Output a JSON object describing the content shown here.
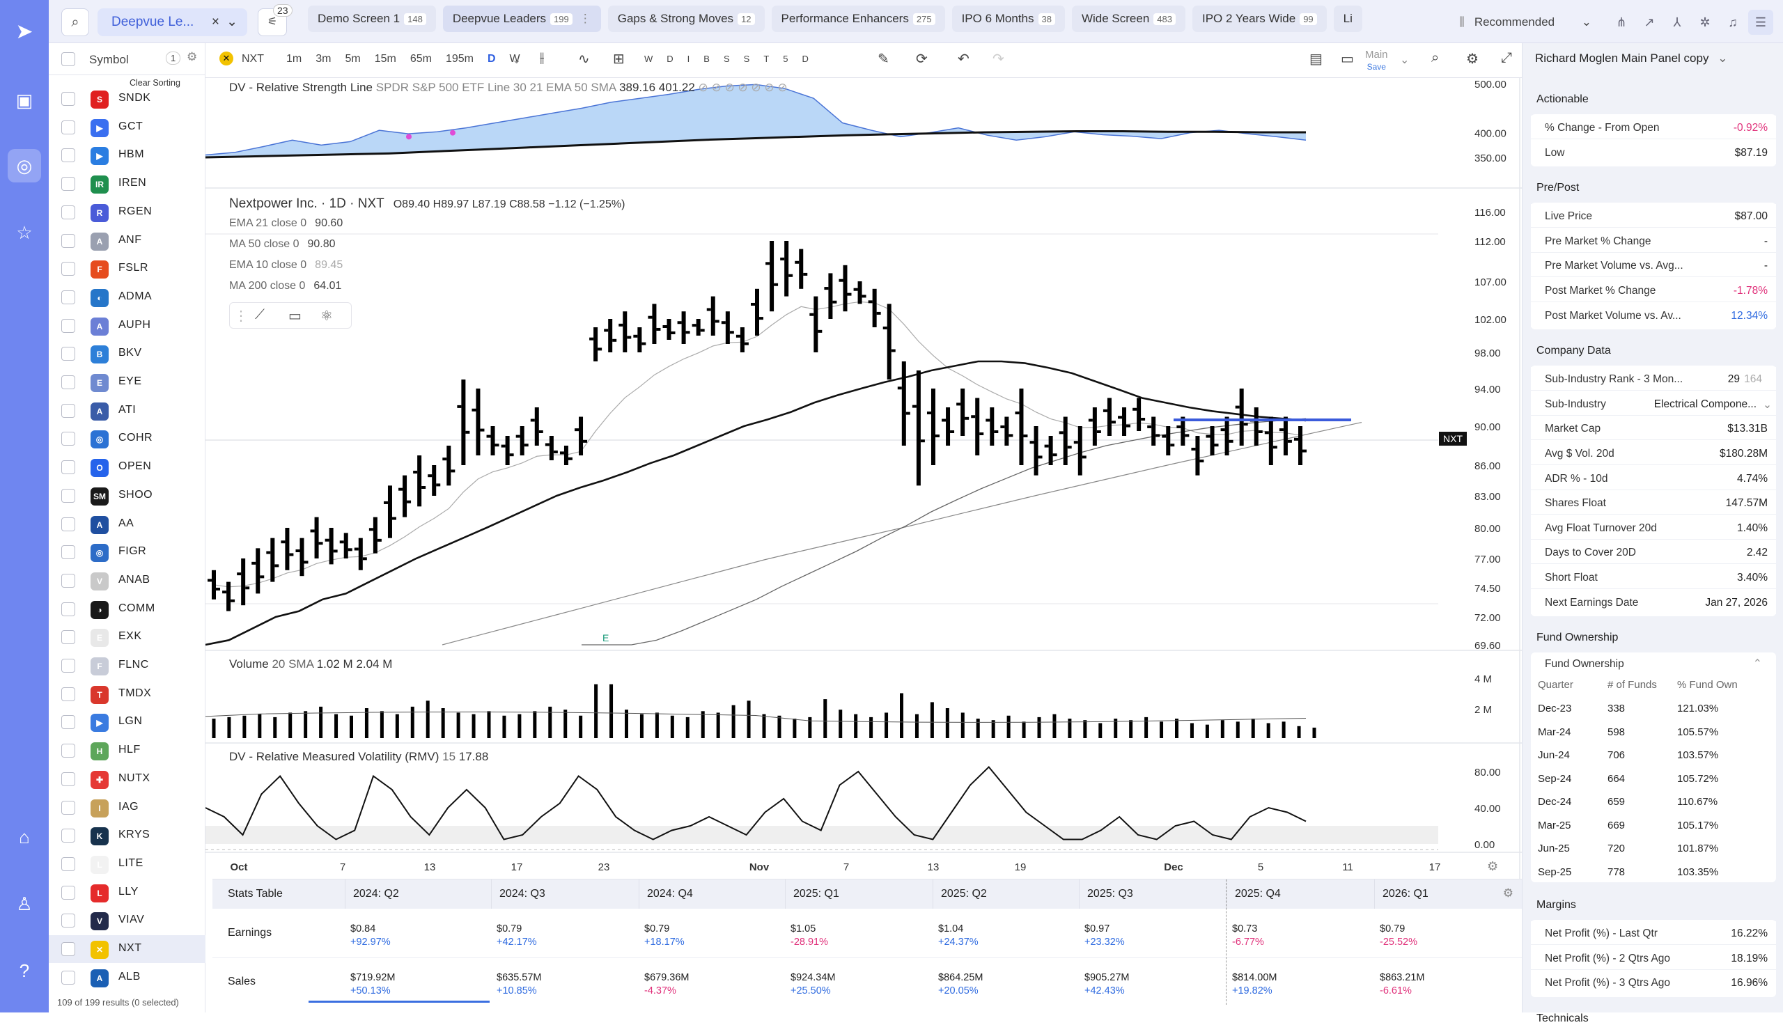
{
  "topbar": {
    "screen_select": "Deepvue Le...",
    "filter_badge": "23",
    "tabs": [
      {
        "label": "Demo Screen 1",
        "count": "148"
      },
      {
        "label": "Deepvue Leaders",
        "count": "199"
      },
      {
        "label": "Gaps & Strong Moves",
        "count": "12"
      },
      {
        "label": "Performance Enhancers",
        "count": "275"
      },
      {
        "label": "IPO 6 Months",
        "count": "38"
      },
      {
        "label": "Wide Screen",
        "count": "483"
      },
      {
        "label": "IPO 2 Years Wide",
        "count": "99"
      },
      {
        "label": "Li",
        "count": ""
      }
    ],
    "recommended": "Recommended"
  },
  "watchlist": {
    "header": "Symbol",
    "header_count": "1",
    "clear_sorting": "Clear Sorting",
    "rows": [
      {
        "ticker": "SNDK",
        "color": "#e02020",
        "mark": "S"
      },
      {
        "ticker": "GCT",
        "color": "#3a6ff0",
        "mark": "▶"
      },
      {
        "ticker": "HBM",
        "color": "#2a7de1",
        "mark": "▶"
      },
      {
        "ticker": "IREN",
        "color": "#1f8f4e",
        "mark": "IR"
      },
      {
        "ticker": "RGEN",
        "color": "#4a5bd8",
        "mark": "R"
      },
      {
        "ticker": "ANF",
        "color": "#9aa0b0",
        "mark": "A"
      },
      {
        "ticker": "FSLR",
        "color": "#e64c1e",
        "mark": "F"
      },
      {
        "ticker": "ADMA",
        "color": "#2676c9",
        "mark": "◐"
      },
      {
        "ticker": "AUPH",
        "color": "#6b7fd6",
        "mark": "A"
      },
      {
        "ticker": "BKV",
        "color": "#2d7fd8",
        "mark": "B"
      },
      {
        "ticker": "EYE",
        "color": "#6f8ad0",
        "mark": "E"
      },
      {
        "ticker": "ATI",
        "color": "#3a5ca8",
        "mark": "A"
      },
      {
        "ticker": "COHR",
        "color": "#2c72d4",
        "mark": "◎"
      },
      {
        "ticker": "OPEN",
        "color": "#2563eb",
        "mark": "O"
      },
      {
        "ticker": "SHOO",
        "color": "#1a1a1a",
        "mark": "SM"
      },
      {
        "ticker": "AA",
        "color": "#1f4fa0",
        "mark": "A"
      },
      {
        "ticker": "FIGR",
        "color": "#2d6cc7",
        "mark": "◎"
      },
      {
        "ticker": "ANAB",
        "color": "#c9c9c9",
        "mark": "V"
      },
      {
        "ticker": "COMM",
        "color": "#1a1a1a",
        "mark": "◑"
      },
      {
        "ticker": "EXK",
        "color": "#e8e8e8",
        "mark": "E"
      },
      {
        "ticker": "FLNC",
        "color": "#c8ccd8",
        "mark": "F"
      },
      {
        "ticker": "TMDX",
        "color": "#d9372c",
        "mark": "T"
      },
      {
        "ticker": "LGN",
        "color": "#3a7be0",
        "mark": "▶"
      },
      {
        "ticker": "HLF",
        "color": "#5da65a",
        "mark": "H"
      },
      {
        "ticker": "NUTX",
        "color": "#e53935",
        "mark": "✚"
      },
      {
        "ticker": "IAG",
        "color": "#c7a15a",
        "mark": "I"
      },
      {
        "ticker": "KRYS",
        "color": "#17324d",
        "mark": "K"
      },
      {
        "ticker": "LITE",
        "color": "#f2f2f2",
        "mark": "L"
      },
      {
        "ticker": "LLY",
        "color": "#e52b2b",
        "mark": "L"
      },
      {
        "ticker": "VIAV",
        "color": "#222a4a",
        "mark": "V"
      },
      {
        "ticker": "NXT",
        "color": "#f2c200",
        "mark": "✕"
      },
      {
        "ticker": "ALB",
        "color": "#1a5fb4",
        "mark": "A"
      }
    ],
    "footer": "109 of 199 results (0 selected)"
  },
  "chart_toolbar": {
    "symbol": "NXT",
    "intervals": [
      "1m",
      "3m",
      "5m",
      "15m",
      "65m",
      "195m",
      "D",
      "W"
    ],
    "periods": [
      "W",
      "D",
      "I",
      "B",
      "S",
      "S",
      "T",
      "5",
      "D"
    ],
    "layout": "Main",
    "layout_sub": "Save"
  },
  "chart_data": {
    "type": "bar",
    "title": "Nextpower Inc. · 1D · NXT",
    "ohlc_text": "O89.40 H89.97 L87.19 C88.58 −1.12 (−1.25%)",
    "indicators": [
      {
        "name": "EMA 21 close 0",
        "value": "90.60"
      },
      {
        "name": "MA 50 close 0",
        "value": "90.80"
      },
      {
        "name": "EMA 10 close 0",
        "value": "89.45"
      },
      {
        "name": "MA 200 close 0",
        "value": "64.01"
      }
    ],
    "rs_label": "DV - Relative Strength Line",
    "rs_params": "SPDR S&P 500 ETF Line 30 21 EMA 50 SMA",
    "rs_values": "389.16  401.22",
    "rs_ticks": [
      "500.00",
      "400.00",
      "350.00"
    ],
    "price_ticks": [
      "116.00",
      "112.00",
      "107.00",
      "102.00",
      "98.00",
      "94.00",
      "90.00",
      "86.00",
      "83.00",
      "80.00",
      "77.00",
      "74.50",
      "72.00",
      "69.60"
    ],
    "last_label": "NXT",
    "volume_label": "Volume",
    "volume_params": "20 SMA",
    "volume_values": "1.02 M  2.04 M",
    "volume_ticks": [
      "4 M",
      "2 M"
    ],
    "rmv_label": "DV - Relative Measured Volatility (RMV)",
    "rmv_params": "15",
    "rmv_value": "17.88",
    "rmv_ticks": [
      "80.00",
      "40.00",
      "0.00"
    ],
    "earnings_marker": "E",
    "x_labels": [
      "Oct",
      "7",
      "13",
      "17",
      "23",
      "Nov",
      "7",
      "13",
      "19",
      "Dec",
      "5",
      "11",
      "17"
    ],
    "bars": [
      [
        76,
        73.5
      ],
      [
        75,
        72.5
      ],
      [
        77,
        73
      ],
      [
        78,
        74
      ],
      [
        79,
        75
      ],
      [
        80,
        76
      ],
      [
        79,
        75.5
      ],
      [
        81,
        77
      ],
      [
        80,
        76.5
      ],
      [
        79.5,
        77
      ],
      [
        79,
        76
      ],
      [
        81,
        77.5
      ],
      [
        84,
        79
      ],
      [
        85,
        81
      ],
      [
        87,
        82
      ],
      [
        86,
        83
      ],
      [
        88,
        84
      ],
      [
        95,
        86
      ],
      [
        94,
        87
      ],
      [
        90,
        87
      ],
      [
        89,
        86
      ],
      [
        90,
        87
      ],
      [
        92,
        88
      ],
      [
        89,
        86.5
      ],
      [
        88,
        86
      ],
      [
        91,
        87
      ],
      [
        101,
        97
      ],
      [
        102,
        98
      ],
      [
        103,
        98
      ],
      [
        101,
        98
      ],
      [
        104,
        99
      ],
      [
        102,
        99.5
      ],
      [
        103,
        99
      ],
      [
        102,
        100
      ],
      [
        105,
        100
      ],
      [
        103,
        99
      ],
      [
        101,
        98
      ],
      [
        106,
        100
      ],
      [
        112,
        103
      ],
      [
        112,
        105
      ],
      [
        111,
        106
      ],
      [
        105,
        98
      ],
      [
        108,
        102
      ],
      [
        109,
        103
      ],
      [
        107,
        104
      ],
      [
        106,
        101
      ],
      [
        104,
        95
      ],
      [
        97,
        88
      ],
      [
        96,
        84
      ],
      [
        94,
        86
      ],
      [
        92,
        88
      ],
      [
        94,
        89
      ],
      [
        93,
        87
      ],
      [
        92,
        88
      ],
      [
        91,
        88
      ],
      [
        94,
        86
      ],
      [
        90,
        85
      ],
      [
        89,
        86
      ],
      [
        91,
        86
      ],
      [
        90,
        85
      ],
      [
        92,
        88
      ],
      [
        93,
        89
      ],
      [
        92,
        89
      ],
      [
        93,
        89.5
      ],
      [
        91,
        88
      ],
      [
        90,
        87
      ],
      [
        91,
        88
      ],
      [
        89,
        85
      ],
      [
        90,
        87
      ],
      [
        91,
        87
      ],
      [
        94,
        88
      ],
      [
        92,
        88
      ],
      [
        91,
        86
      ],
      [
        91,
        87
      ],
      [
        90,
        86
      ]
    ],
    "volume_m": [
      1.3,
      1.4,
      1.5,
      1.6,
      1.4,
      1.7,
      1.8,
      2.1,
      1.6,
      1.5,
      2.0,
      1.8,
      1.6,
      2.1,
      2.5,
      2.0,
      1.7,
      1.6,
      1.8,
      1.5,
      1.6,
      1.8,
      2.1,
      1.9,
      1.5,
      3.6,
      3.6,
      1.9,
      1.6,
      1.7,
      1.5,
      1.4,
      1.8,
      1.7,
      2.2,
      2.5,
      1.6,
      1.5,
      1.3,
      1.4,
      2.6,
      1.9,
      1.6,
      1.4,
      1.7,
      3.0,
      1.6,
      2.4,
      2.0,
      1.7,
      1.3,
      1.2,
      1.5,
      1.1,
      1.4,
      1.6,
      1.3,
      1.2,
      1.0,
      1.3,
      1.2,
      1.4,
      1.1,
      1.3,
      1.0,
      0.9,
      1.2,
      1.1,
      1.3,
      1.0,
      1.1,
      0.8,
      0.7
    ],
    "rmv": [
      40,
      30,
      10,
      55,
      75,
      45,
      20,
      5,
      15,
      75,
      60,
      30,
      10,
      40,
      60,
      40,
      5,
      10,
      30,
      45,
      75,
      60,
      30,
      15,
      5,
      15,
      20,
      30,
      20,
      10,
      35,
      50,
      25,
      15,
      65,
      80,
      55,
      30,
      10,
      5,
      35,
      65,
      85,
      60,
      35,
      20,
      5,
      5,
      15,
      30,
      10,
      5,
      20,
      25,
      10,
      5,
      30,
      40,
      35,
      25
    ],
    "ema21": [
      69,
      70,
      71,
      72,
      72.5,
      73.5,
      74,
      75,
      76,
      77,
      78,
      79,
      80,
      81,
      82,
      83,
      83.8,
      84.5,
      85.3,
      86.2,
      87,
      88,
      89,
      90,
      90.7,
      91.5,
      92.5,
      93.3,
      94,
      94.7,
      95.3,
      96,
      96.5,
      97,
      97,
      96.8,
      96.3,
      95.7,
      94.8,
      93.9,
      93,
      92.5,
      92,
      91.6,
      91.3,
      91,
      90.8,
      90.6
    ],
    "ma50": [
      68,
      68.7,
      69.4,
      70,
      70.8,
      71.7,
      72.6,
      73.5,
      74.6,
      75.6,
      76.6,
      77.7,
      79,
      80.2,
      81.5,
      82.6,
      83.7,
      84.7,
      85.7,
      86.5,
      87.3,
      88,
      88.5,
      89,
      89.4,
      89.8,
      90.1,
      90.4,
      90.6,
      90.8
    ],
    "rs_line": [
      350,
      352,
      354,
      356,
      358,
      362,
      366,
      370,
      374,
      378,
      382,
      386,
      389,
      392,
      395,
      397,
      399,
      401,
      402,
      403,
      403,
      402,
      402,
      401,
      401
    ],
    "rs_area": [
      355,
      360,
      372,
      385,
      375,
      382,
      405,
      398,
      402,
      410,
      420,
      430,
      440,
      450,
      462,
      470,
      478,
      488,
      495,
      498,
      490,
      470,
      420,
      405,
      392,
      400,
      410,
      395,
      385,
      392,
      402,
      396,
      393,
      388,
      400,
      405,
      398,
      392,
      385
    ]
  },
  "stats": {
    "title": "Stats Table",
    "columns": [
      "2024: Q2",
      "2024: Q3",
      "2024: Q4",
      "2025: Q1",
      "2025: Q2",
      "2025: Q3",
      "2025: Q4",
      "2026: Q1"
    ],
    "rows": [
      {
        "label": "Earnings",
        "values": [
          [
            "$0.84",
            "+92.97%"
          ],
          [
            "$0.79",
            "+42.17%"
          ],
          [
            "$0.79",
            "+18.17%"
          ],
          [
            "$1.05",
            "-28.91%"
          ],
          [
            "$1.04",
            "+24.37%"
          ],
          [
            "$0.97",
            "+23.32%"
          ],
          [
            "$0.73",
            "-6.77%"
          ],
          [
            "$0.79",
            "-25.52%"
          ]
        ]
      },
      {
        "label": "Sales",
        "values": [
          [
            "$719.92M",
            "+50.13%"
          ],
          [
            "$635.57M",
            "+10.85%"
          ],
          [
            "$679.36M",
            "-4.37%"
          ],
          [
            "$924.34M",
            "+25.50%"
          ],
          [
            "$864.25M",
            "+20.05%"
          ],
          [
            "$905.27M",
            "+42.43%"
          ],
          [
            "$814.00M",
            "+19.82%"
          ],
          [
            "$863.21M",
            "-6.61%"
          ]
        ]
      }
    ]
  },
  "side": {
    "panel_title": "Richard Moglen Main Panel copy",
    "actionable": {
      "title": "Actionable",
      "rows": [
        {
          "k": "% Change - From Open",
          "v": "-0.92%"
        },
        {
          "k": "Low",
          "v": "$87.19"
        }
      ]
    },
    "prepost": {
      "title": "Pre/Post",
      "rows": [
        {
          "k": "Live Price",
          "v": "$87.00"
        },
        {
          "k": "Pre Market % Change",
          "v": "-"
        },
        {
          "k": "Pre Market Volume vs. Avg...",
          "v": "-"
        },
        {
          "k": "Post Market % Change",
          "v": "-1.78%"
        },
        {
          "k": "Post Market Volume vs. Av...",
          "v": "12.34%"
        }
      ]
    },
    "company": {
      "title": "Company Data",
      "rows": [
        {
          "k": "Sub-Industry Rank - 3 Mon...",
          "v": "29",
          "v2": "164"
        },
        {
          "k": "Sub-Industry",
          "v": "Electrical Compone..."
        },
        {
          "k": "Market Cap",
          "v": "$13.31B"
        },
        {
          "k": "Avg $ Vol. 20d",
          "v": "$180.28M"
        },
        {
          "k": "ADR % - 10d",
          "v": "4.74%"
        },
        {
          "k": "Shares Float",
          "v": "147.57M"
        },
        {
          "k": "Avg Float Turnover 20d",
          "v": "1.40%"
        },
        {
          "k": "Days to Cover 20D",
          "v": "2.42"
        },
        {
          "k": "Short Float",
          "v": "3.40%"
        },
        {
          "k": "Next Earnings Date",
          "v": "Jan 27, 2026"
        }
      ]
    },
    "fund": {
      "title": "Fund Ownership",
      "sub": "Fund Ownership",
      "cols": [
        "Quarter",
        "# of Funds",
        "% Fund Own"
      ],
      "rows": [
        [
          "Dec-23",
          "338",
          "121.03%"
        ],
        [
          "Mar-24",
          "598",
          "105.57%"
        ],
        [
          "Jun-24",
          "706",
          "103.57%"
        ],
        [
          "Sep-24",
          "664",
          "105.72%"
        ],
        [
          "Dec-24",
          "659",
          "110.67%"
        ],
        [
          "Mar-25",
          "669",
          "105.17%"
        ],
        [
          "Jun-25",
          "720",
          "101.87%"
        ],
        [
          "Sep-25",
          "778",
          "103.35%"
        ]
      ]
    },
    "margins": {
      "title": "Margins",
      "rows": [
        {
          "k": "Net Profit (%) - Last Qtr",
          "v": "16.22%"
        },
        {
          "k": "Net Profit (%) - 2 Qtrs Ago",
          "v": "18.19%"
        },
        {
          "k": "Net Profit (%) - 3 Qtrs Ago",
          "v": "16.96%"
        }
      ]
    },
    "technicals": "Technicals"
  },
  "colors": {
    "accent": "#6f86f0",
    "negative": "#e0307a",
    "positive": "#2f6be0",
    "rs_fill": "#a9cdf5",
    "hline": "#3b5bdb"
  }
}
